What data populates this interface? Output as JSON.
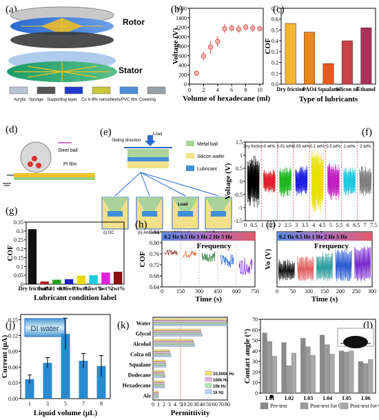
{
  "panels": {
    "a": {
      "label": "(a)",
      "rotor": "Rotor",
      "stator": "Stator",
      "layers": [
        "Acrylic",
        "Sponge",
        "Supporting layer",
        "Cu",
        "h-BN nanosheets/PVC film",
        "Covering"
      ],
      "layer_colors": [
        "#b9c2d0",
        "#555555",
        "#1e3cc8",
        "#c9c73a",
        "#4d8fd9",
        "#9aa0a8"
      ]
    },
    "b": {
      "label": "(b)"
    },
    "c": {
      "label": "(c)"
    },
    "d": {
      "label": "(d)",
      "steel_ball": "Steel ball",
      "pi_film": "PI film"
    },
    "e": {
      "label": "(e)",
      "sliding": "Sliding direction",
      "load": "Load",
      "legend": [
        "Metal ball",
        "Silicon wafer",
        "Lubricant"
      ],
      "legend_colors": [
        "#a9d39a",
        "#f3e08a",
        "#3f8fd8"
      ],
      "sub": [
        "(i) DC",
        "(ii) Anti-wear",
        "(iii) Load",
        "(iv) Frequency"
      ],
      "sub_load": "Load"
    },
    "f": {
      "label": "(f)"
    },
    "g": {
      "label": "(g)"
    },
    "h": {
      "label": "(h)",
      "banner": "0.2 Hz  0.5 Hz  1 Hz  2 Hz  5 Hz",
      "frequency": "Frequency"
    },
    "i": {
      "label": "(i)",
      "banner": "0.2 Hz  0.5 Hz  1 Hz  2 Hz  5 Hz",
      "frequency": "Frequency"
    },
    "j": {
      "label": "(j)",
      "box": "DI water"
    },
    "k": {
      "label": "(k)"
    },
    "l": {
      "label": "(l)"
    }
  },
  "chart_data": [
    {
      "panel": "b",
      "type": "scatter",
      "x": [
        1,
        2,
        3,
        4,
        5,
        6,
        7,
        8,
        9,
        10
      ],
      "y": [
        230,
        590,
        780,
        900,
        1170,
        1180,
        1160,
        1200,
        1180,
        1170
      ],
      "err": [
        40,
        90,
        140,
        110,
        100,
        70,
        90,
        70,
        80,
        60
      ],
      "xlabel": "Volume of hexadecane (ml)",
      "ylabel": "Voltage (V)",
      "xlim": [
        0,
        10.5
      ],
      "ylim": [
        0,
        1600
      ],
      "xticks": [
        "0",
        "2",
        "4",
        "6",
        "8",
        "10"
      ],
      "yticks": [
        "0",
        "200",
        "400",
        "600",
        "800",
        "1000",
        "1200",
        "1400",
        "1600"
      ],
      "color": "#d9534f"
    },
    {
      "panel": "c",
      "type": "bar",
      "categories": [
        "Dry friction",
        "PAO4",
        "Squalane",
        "Silicon oil",
        "Ethanol"
      ],
      "values": [
        0.56,
        0.48,
        0.19,
        0.4,
        0.52
      ],
      "colors": [
        "#f2b632",
        "#e8891c",
        "#e85a1c",
        "#c8424a",
        "#a8325a"
      ],
      "xlabel": "Type of lubricants",
      "ylabel": "COF",
      "ylim": [
        0,
        0.7
      ],
      "yticks": [
        "0.0",
        "0.1",
        "0.2",
        "0.3",
        "0.4",
        "0.5",
        "0.6",
        "0.7"
      ]
    },
    {
      "panel": "f",
      "type": "line",
      "segments": [
        "Dry friction",
        "0 wt%",
        "0.01 wt%",
        "0.05 wt%",
        "0.1 wt%",
        "0.5 wt%",
        "1 wt%",
        "2 wt%"
      ],
      "colors": [
        "#000000",
        "#e0202a",
        "#22b822",
        "#2020e0",
        "#e8e000",
        "#c020c0",
        "#20c8e0",
        "#808080"
      ],
      "amplitudes": [
        1.0,
        0.45,
        0.6,
        0.6,
        1.2,
        0.75,
        0.55,
        0.6
      ],
      "xlabel": "Time (s)",
      "ylabel": "Voltage (V)",
      "xlim": [
        0,
        7.5
      ],
      "ylim": [
        -1.5,
        1.5
      ],
      "xticks": [
        "0",
        "0.5",
        "1",
        "1.5",
        "2",
        "2.5",
        "3",
        "3.5",
        "4",
        "4.5",
        "5",
        "5.5",
        "6",
        "6.5",
        "7",
        "7.5"
      ],
      "yticks": [
        "-1.5",
        "-1",
        "-0.5",
        "0",
        "0.5",
        "1",
        "1.5"
      ]
    },
    {
      "panel": "g",
      "type": "bar",
      "categories": [
        "Dry friction",
        "0wt%",
        "0.01 wt%",
        "0.05wt%",
        "0.1wt%",
        "0.5wt%",
        "1wt%",
        "2wt%"
      ],
      "values": [
        0.31,
        0.015,
        0.025,
        0.028,
        0.048,
        0.05,
        0.065,
        0.07
      ],
      "colors": [
        "#111111",
        "#b02020",
        "#20a020",
        "#2020c0",
        "#e8d800",
        "#20c8e0",
        "#e020e0",
        "#8b1010"
      ],
      "xlabel": "Lubricant condition label",
      "ylabel": "COF",
      "ylim": [
        0,
        0.35
      ],
      "yticks": [
        "0",
        "0.05",
        "0.1",
        "0.15",
        "0.2",
        "0.25",
        "0.3",
        "0.35"
      ]
    },
    {
      "panel": "h",
      "type": "line",
      "colors": [
        "#8b1a1a",
        "#e06a2a",
        "#2a7a3a",
        "#2a6ad0",
        "#7a2ad0"
      ],
      "centers": [
        0.765,
        0.76,
        0.75,
        0.735,
        0.715
      ],
      "xlabel": "Time (s)",
      "ylabel": "COF",
      "xlim": [
        0,
        750
      ],
      "ylim": [
        0.64,
        0.84
      ],
      "xticks": [
        "0",
        "150",
        "300",
        "450",
        "600",
        "750"
      ],
      "yticks": [
        "0.64",
        "0.68",
        "0.72",
        "0.76",
        "0.80",
        "0.84"
      ]
    },
    {
      "panel": "i",
      "type": "line",
      "colors": [
        "#111111",
        "#e06060",
        "#2a9a9a",
        "#2a5ad0",
        "#7a2ad0"
      ],
      "xlabel": "Time (s)",
      "ylabel": "Vo (V)",
      "xlim": [
        0,
        300
      ],
      "xticks": [
        "0",
        "50",
        "100",
        "150",
        "200",
        "250",
        "300"
      ]
    },
    {
      "panel": "j",
      "type": "bar",
      "categories": [
        "1",
        "3",
        "5",
        "7",
        "9"
      ],
      "values": [
        0.037,
        0.068,
        0.123,
        0.072,
        0.062
      ],
      "err": [
        0.008,
        0.01,
        0.03,
        0.014,
        0.02
      ],
      "color": "#2a8ad0",
      "xlabel": "Liquid volume (μL)",
      "ylabel": "Current (μA)",
      "ylim": [
        0,
        0.16
      ],
      "yticks": [
        "0.00",
        "0.03",
        "0.06",
        "0.09",
        "0.12",
        "0.15"
      ]
    },
    {
      "panel": "k",
      "type": "bar",
      "categories": [
        "Water",
        "Glycol",
        "Alcohol",
        "Colza oil",
        "Squalane",
        "Dodecane",
        "Hexadecane",
        "Air"
      ],
      "series": [
        {
          "name": "10,000k Hz",
          "values": [
            78,
            37,
            25,
            3.0,
            2.2,
            2.0,
            2.0,
            1.0
          ],
          "color": "#f6e27a"
        },
        {
          "name": "100k Hz",
          "values": [
            79,
            38,
            26,
            3.1,
            2.3,
            2.1,
            2.05,
            1.0
          ],
          "color": "#e8b4d8"
        },
        {
          "name": "10k Hz",
          "values": [
            80,
            39,
            27,
            3.2,
            2.35,
            2.15,
            2.1,
            1.0
          ],
          "color": "#b4e6b4"
        },
        {
          "name": "1k Hz",
          "values": [
            80,
            40,
            28,
            3.3,
            2.4,
            2.2,
            2.1,
            1.0
          ],
          "color": "#bcd4f4"
        }
      ],
      "xlabel": "Permittivity",
      "xticks": [
        "0",
        "1",
        "2",
        "3",
        "4",
        "5",
        "10",
        "20",
        "30",
        "40",
        "50",
        "60",
        "70",
        "80"
      ]
    },
    {
      "panel": "l",
      "type": "bar",
      "categories": [
        "L01",
        "L02",
        "L03",
        "L04",
        "L05",
        "L06"
      ],
      "series": [
        {
          "name": "Pre-test",
          "values": [
            57,
            48,
            52,
            55,
            40,
            30
          ]
        },
        {
          "name": "Post-test for CoC",
          "values": [
            49,
            26,
            44,
            46,
            39,
            28
          ]
        },
        {
          "name": "Post-test for CoP",
          "values": [
            35,
            38,
            36,
            37,
            40,
            32
          ]
        }
      ],
      "colors": [
        "#8a8a8a",
        "#9a9a9a",
        "#aaaaaa"
      ],
      "ylabel": "Contact angle (°)",
      "ylim": [
        0,
        70
      ],
      "yticks": [
        "0",
        "10",
        "20",
        "30",
        "40",
        "50",
        "60",
        "70"
      ]
    }
  ]
}
